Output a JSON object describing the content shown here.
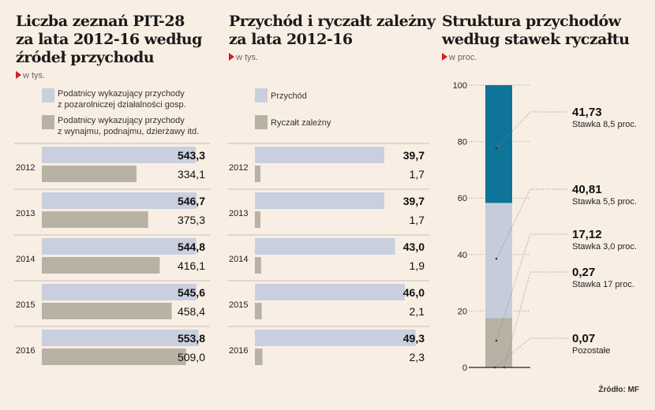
{
  "colors": {
    "primary": "#c9cfdf",
    "secondary": "#b8b2a5",
    "teal": "#0e7499",
    "accent": "#d0202a"
  },
  "source": "Źródło: MF",
  "chart_data": [
    {
      "type": "bar",
      "orientation": "horizontal",
      "title": "Liczba zeznań PIT-28 za lata 2012-16 według źródeł przychodu",
      "unit": "w tys.",
      "categories": [
        "2012",
        "2013",
        "2014",
        "2015",
        "2016"
      ],
      "series": [
        {
          "name": "Podatnicy wykazujący przychody z pozarolniczej działalności gosp.",
          "values": [
            543.3,
            546.7,
            544.8,
            545.6,
            553.8
          ],
          "labels": [
            "543,3",
            "546,7",
            "544,8",
            "545,6",
            "553,8"
          ]
        },
        {
          "name": "Podatnicy wykazujący przychody z wynajmu, podnajmu, dzierżawy itd.",
          "values": [
            334.1,
            375.3,
            416.1,
            458.4,
            509.0
          ],
          "labels": [
            "334,1",
            "375,3",
            "416,1",
            "458,4",
            "509,0"
          ]
        }
      ],
      "legend_lines": [
        [
          "Podatnicy wykazujący przychody",
          "z pozarolniczej działalności gosp."
        ],
        [
          "Podatnicy wykazujący przychody",
          "z wynajmu, podnajmu, dzierżawy itd."
        ]
      ],
      "title_lines": [
        "Liczba zeznań PIT-28",
        "za lata 2012-16 według",
        "źródeł przychodu"
      ]
    },
    {
      "type": "bar",
      "orientation": "horizontal",
      "title": "Przychód i ryczałt zależny za lata 2012-16",
      "unit": "w tys.",
      "categories": [
        "2012",
        "2013",
        "2014",
        "2015",
        "2016"
      ],
      "series": [
        {
          "name": "Przychód",
          "values": [
            39.7,
            39.7,
            43.0,
            46.0,
            49.3
          ],
          "labels": [
            "39,7",
            "39,7",
            "43,0",
            "46,0",
            "49,3"
          ]
        },
        {
          "name": "Ryczałt zależny",
          "values": [
            1.7,
            1.7,
            1.9,
            2.1,
            2.3
          ],
          "labels": [
            "1,7",
            "1,7",
            "1,9",
            "2,1",
            "2,3"
          ]
        }
      ],
      "title_lines": [
        "Przychód i ryczałt zależny",
        "za lata 2012-16"
      ]
    },
    {
      "type": "bar",
      "stacked": true,
      "title": "Struktura przychodów według stawek ryczałtu",
      "unit": "w proc.",
      "ylim": [
        0,
        100
      ],
      "yticks": [
        "0",
        "20",
        "40",
        "60",
        "80",
        "100"
      ],
      "segments": [
        {
          "name": "Pozostałe",
          "value": 0.07,
          "label": "0,07",
          "color": "#b8b2a5"
        },
        {
          "name": "Stawka 17 proc.",
          "value": 0.27,
          "label": "0,27",
          "color": "#b8b2a5"
        },
        {
          "name": "Stawka 3,0 proc.",
          "value": 17.12,
          "label": "17,12",
          "color": "#b8b2a5"
        },
        {
          "name": "Stawka 5,5 proc.",
          "value": 40.81,
          "label": "40,81",
          "color": "#c5cddb"
        },
        {
          "name": "Stawka 8,5 proc.",
          "value": 41.73,
          "label": "41,73",
          "color": "#0e7499"
        }
      ],
      "title_lines": [
        "Struktura przychodów",
        "według stawek ryczałtu"
      ]
    }
  ]
}
